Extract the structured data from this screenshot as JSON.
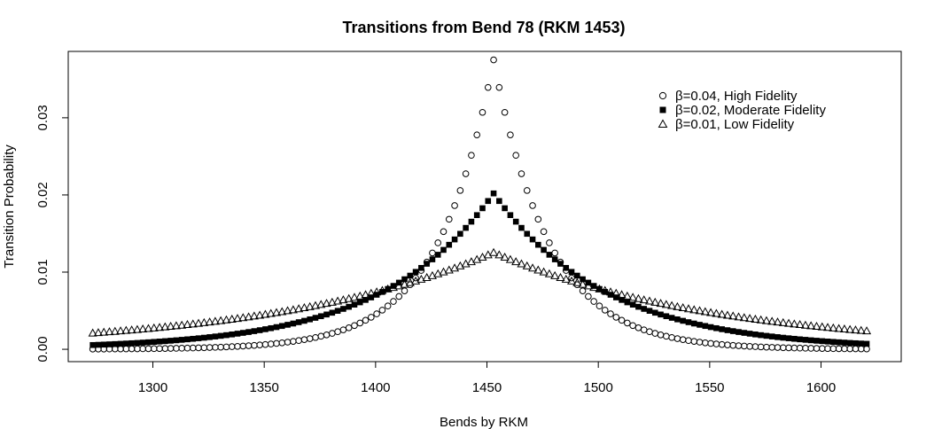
{
  "chart_data": {
    "type": "scatter",
    "title": "Transitions from Bend 78 (RKM 1453)",
    "xlabel": "Bends by RKM",
    "ylabel": "Transition Probability",
    "xlim": [
      1262,
      1636
    ],
    "ylim": [
      -0.0016,
      0.0386
    ],
    "x_ticks": [
      1300,
      1350,
      1400,
      1450,
      1500,
      1550,
      1600
    ],
    "y_ticks": [
      0.0,
      0.01,
      0.02,
      0.03
    ],
    "y_tick_labels": [
      "0.00",
      "0.01",
      "0.02",
      "0.03"
    ],
    "peak_rkm": 1453,
    "x_min": 1273,
    "x_max": 1622,
    "grid": false,
    "legend_position": "top-right",
    "series": [
      {
        "name": "β=0.04, High Fidelity",
        "marker": "open-circle",
        "beta": 0.04,
        "peak": 0.0375
      },
      {
        "name": "β=0.02, Moderate Fidelity",
        "marker": "filled-square",
        "beta": 0.02,
        "peak": 0.0202
      },
      {
        "name": "β=0.01, Low Fidelity",
        "marker": "open-triangle",
        "beta": 0.01,
        "peak": 0.0125
      }
    ]
  }
}
